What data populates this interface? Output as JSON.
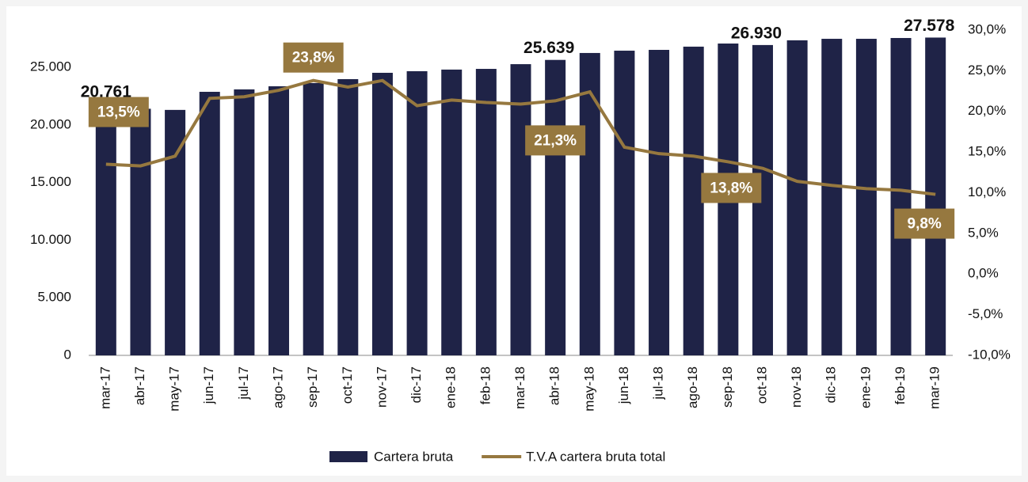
{
  "chart_data": {
    "type": "bar_line",
    "categories": [
      "mar-17",
      "abr-17",
      "may-17",
      "jun-17",
      "jul-17",
      "ago-17",
      "sep-17",
      "oct-17",
      "nov-17",
      "dic-17",
      "ene-18",
      "feb-18",
      "mar-18",
      "abr-18",
      "may-18",
      "jun-18",
      "jul-18",
      "ago-18",
      "sep-18",
      "oct-18",
      "nov-18",
      "dic-18",
      "ene-19",
      "feb-19",
      "mar-19"
    ],
    "series": [
      {
        "name": "Cartera bruta",
        "color": "#1f2347",
        "type": "bar",
        "values": [
          20761,
          21400,
          21300,
          22870,
          23080,
          23350,
          23630,
          23970,
          24520,
          24660,
          24800,
          24860,
          25270,
          25639,
          26240,
          26440,
          26510,
          26790,
          27060,
          26930,
          27340,
          27470,
          27470,
          27540,
          27578
        ],
        "value_labels": [
          "20.761",
          null,
          null,
          null,
          null,
          null,
          null,
          null,
          null,
          null,
          null,
          null,
          null,
          "25.639",
          null,
          null,
          null,
          null,
          null,
          "26.930",
          null,
          null,
          null,
          null,
          "27.578"
        ]
      },
      {
        "name": "T.V.A cartera bruta total",
        "color": "#96783f",
        "type": "line",
        "axis": "y2",
        "values": [
          13.5,
          13.3,
          14.5,
          21.6,
          21.8,
          22.6,
          23.8,
          23.0,
          23.8,
          20.7,
          21.4,
          21.1,
          20.9,
          21.3,
          22.4,
          15.6,
          14.8,
          14.5,
          13.8,
          13.0,
          11.4,
          10.9,
          10.5,
          10.3,
          9.8
        ],
        "value_labels": [
          "13,5%",
          null,
          null,
          null,
          null,
          null,
          "23,8%",
          null,
          null,
          null,
          null,
          null,
          null,
          "21,3%",
          null,
          null,
          null,
          null,
          "13,8%",
          null,
          null,
          null,
          null,
          null,
          "9,8%"
        ]
      }
    ],
    "ylim": [
      0,
      28228
    ],
    "yticks": [
      0,
      {
        "value": 5000,
        "label": "5.000"
      },
      {
        "value": 10000,
        "label": "10.000"
      },
      {
        "value": 15000,
        "label": "15.000"
      },
      {
        "value": 20000,
        "label": "20.000"
      },
      {
        "value": 25000,
        "label": "25.000"
      }
    ],
    "y2lim": [
      -10,
      30
    ],
    "y2ticks": [
      {
        "value": -10,
        "label": "-10,0%"
      },
      {
        "value": -5,
        "label": "-5,0%"
      },
      {
        "value": 0,
        "label": "0,0%"
      },
      {
        "value": 5,
        "label": "5,0%"
      },
      {
        "value": 10,
        "label": "10,0%"
      },
      {
        "value": 15,
        "label": "15,0%"
      },
      {
        "value": 20,
        "label": "20,0%"
      },
      {
        "value": 25,
        "label": "25,0%"
      },
      {
        "value": 30,
        "label": "30,0%"
      }
    ],
    "legend": "bottom"
  }
}
